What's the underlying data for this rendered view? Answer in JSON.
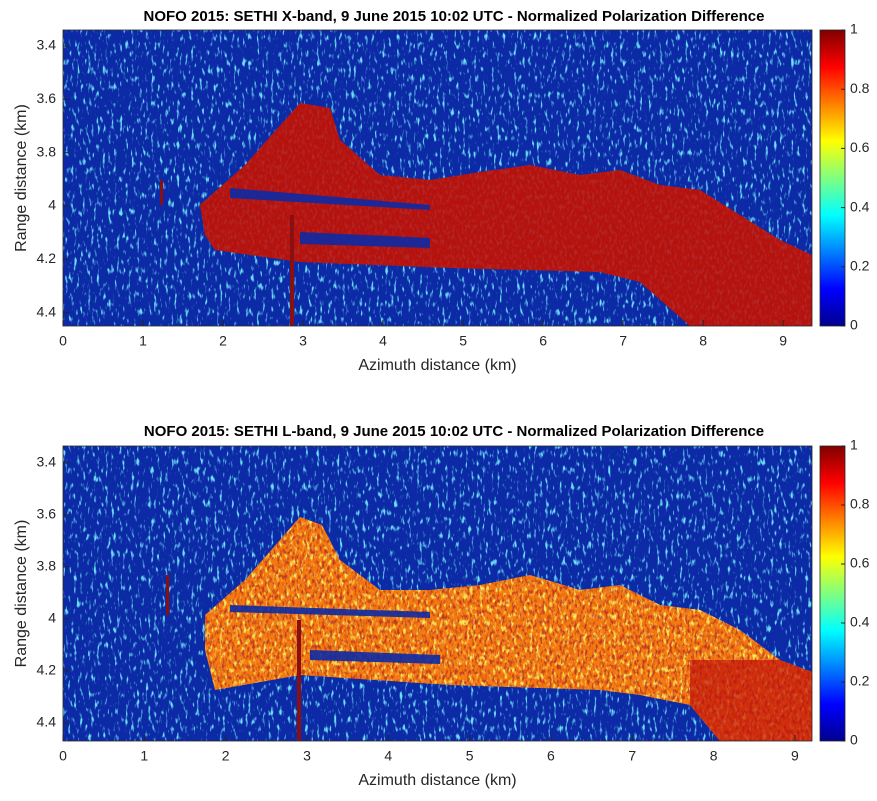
{
  "chart_data": [
    {
      "type": "heatmap",
      "title": "NOFO 2015: SETHI X-band, 9 June 2015 10:02 UTC - Normalized Polarization Difference",
      "xlabel": "Azimuth distance (km)",
      "ylabel": "Range distance (km)",
      "xlim": [
        0,
        9.36
      ],
      "ylim": [
        3.34,
        4.45
      ],
      "y_reversed": true,
      "xticks": [
        0,
        1,
        2,
        3,
        4,
        5,
        6,
        7,
        8,
        9
      ],
      "yticks": [
        3.4,
        3.6,
        3.8,
        4,
        4.2,
        4.4
      ],
      "colorbar": {
        "lim": [
          0,
          1
        ],
        "ticks": [
          0,
          0.2,
          0.4,
          0.6,
          0.8,
          1
        ],
        "colormap": "jet"
      }
    },
    {
      "type": "heatmap",
      "title": "NOFO 2015: SETHI L-band, 9 June 2015 10:02 UTC - Normalized Polarization Difference",
      "xlabel": "Azimuth distance (km)",
      "ylabel": "Range distance (km)",
      "xlim": [
        0,
        9.21
      ],
      "ylim": [
        3.335,
        4.47
      ],
      "y_reversed": true,
      "xticks": [
        0,
        1,
        2,
        3,
        4,
        5,
        6,
        7,
        8,
        9
      ],
      "yticks": [
        3.4,
        3.6,
        3.8,
        4,
        4.2,
        4.4
      ],
      "colorbar": {
        "lim": [
          0,
          1
        ],
        "ticks": [
          0,
          0.2,
          0.4,
          0.6,
          0.8,
          1
        ],
        "colormap": "jet"
      }
    }
  ]
}
